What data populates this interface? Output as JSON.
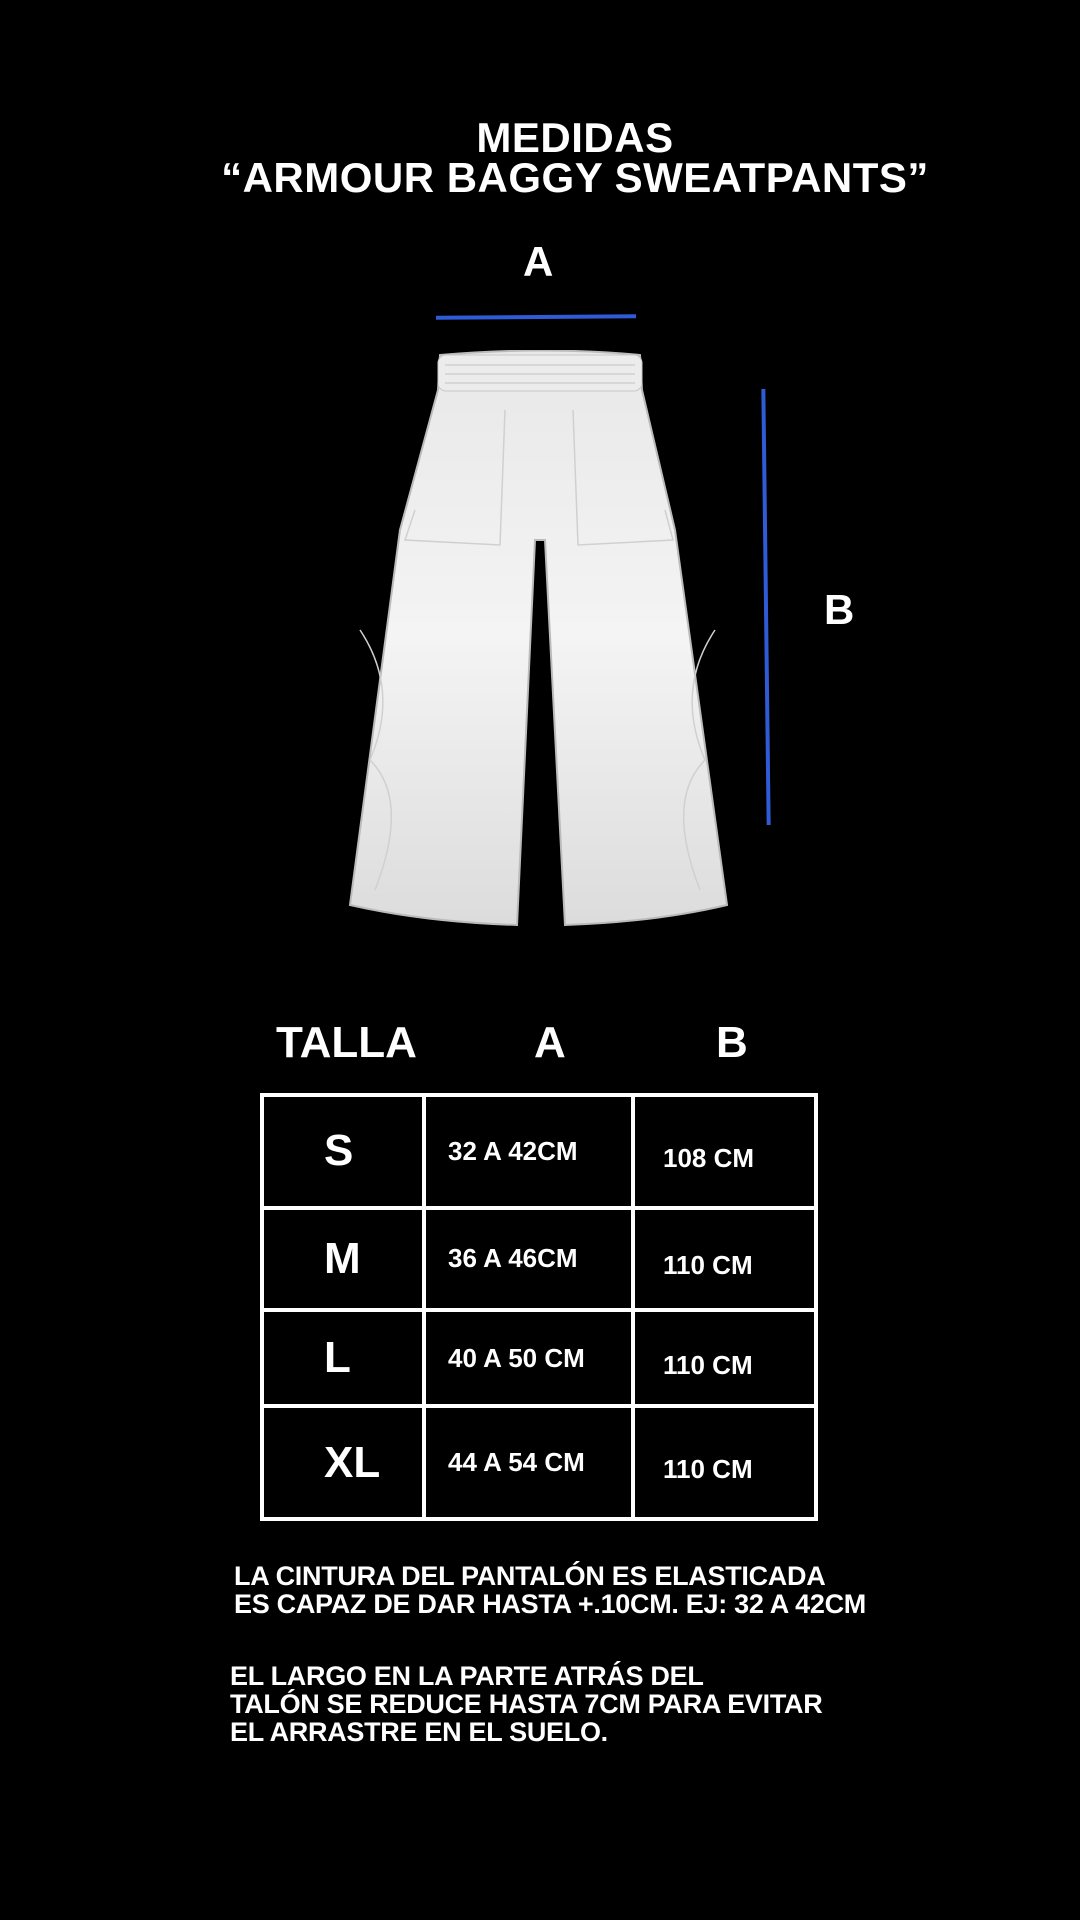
{
  "title": {
    "line1": "MEDIDAS",
    "line2": "“ARMOUR BAGGY SWEATPANTS”"
  },
  "diagram": {
    "label_a": "A",
    "label_b": "B",
    "accent_color": "#2f5bd6",
    "image": "white-baggy-sweatpants"
  },
  "table": {
    "headers": [
      "TALLA",
      "A",
      "B"
    ],
    "rows": [
      {
        "size": "S",
        "a": "32 A 42CM",
        "b": "108 CM"
      },
      {
        "size": "M",
        "a": "36 A 46CM",
        "b": "110 CM"
      },
      {
        "size": "L",
        "a": "40 A 50 CM",
        "b": "110 CM"
      },
      {
        "size": "XL",
        "a": "44 A 54 CM",
        "b": "110 CM"
      }
    ]
  },
  "notes": {
    "waist": [
      "LA CINTURA DEL PANTALÓN ES ELASTICADA",
      "ES CAPAZ DE DAR HASTA +.10CM. EJ: 32 A 42CM"
    ],
    "length": [
      "EL LARGO EN LA PARTE ATRÁS DEL",
      "TALÓN SE REDUCE HASTA 7CM PARA EVITAR",
      "EL ARRASTRE EN EL SUELO."
    ]
  }
}
